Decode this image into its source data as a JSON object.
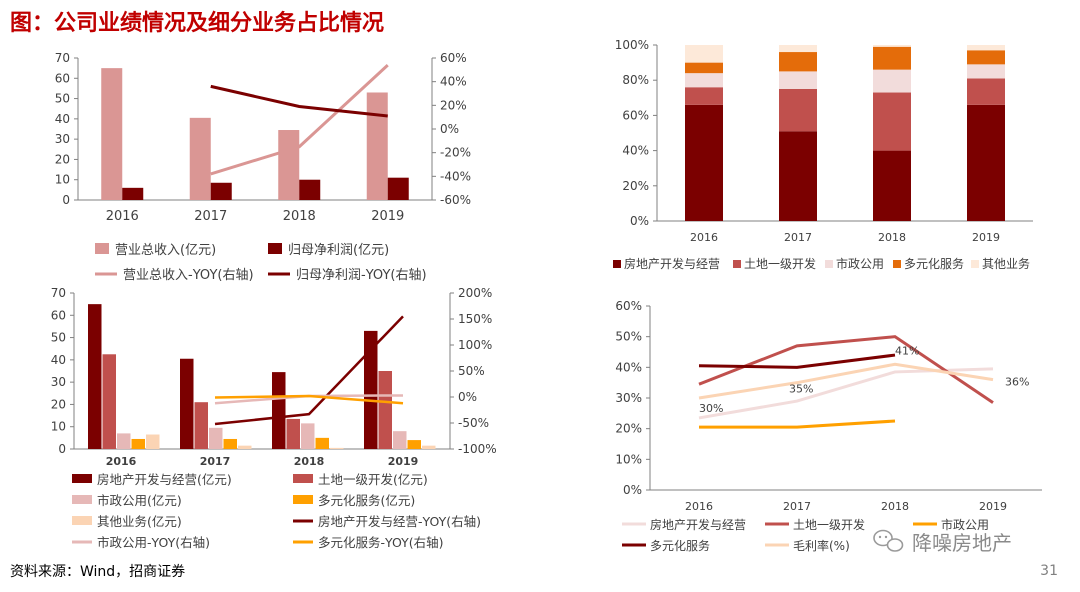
{
  "page": {
    "title": "图：公司业绩情况及细分业务占比情况",
    "source": "资料来源：Wind，招商证券",
    "page_number": "31",
    "watermark": "降噪房地产"
  },
  "colors": {
    "title": "#c00000",
    "dark_red": "#7b0000",
    "red": "#c0504d",
    "pink": "#da9694",
    "light_pink": "#e6b8b7",
    "very_light_pink": "#f2dcdb",
    "orange": "#e46c0a",
    "yellow_orange": "#ffa000",
    "peach": "#fbd4b4",
    "cream": "#fde9d9",
    "axis": "#808080"
  },
  "chart_data": [
    {
      "id": "c1",
      "type": "bar",
      "categories": [
        "2016",
        "2017",
        "2018",
        "2019"
      ],
      "ylim": [
        0,
        70
      ],
      "yticks": [
        "0",
        "10",
        "20",
        "30",
        "40",
        "50",
        "60",
        "70"
      ],
      "y2lim": [
        -60,
        60
      ],
      "y2ticks": [
        "-60%",
        "-40%",
        "-20%",
        "0%",
        "20%",
        "40%",
        "60%"
      ],
      "series": [
        {
          "name": "营业总收入(亿元)",
          "kind": "bar",
          "color": "#da9694",
          "values": [
            65,
            40.5,
            34.5,
            53
          ]
        },
        {
          "name": "归母净利润(亿元)",
          "kind": "bar",
          "color": "#7b0000",
          "values": [
            6,
            8.5,
            10,
            11
          ]
        },
        {
          "name": "营业总收入-YOY(右轴)",
          "kind": "line",
          "axis": "right",
          "color": "#da9694",
          "values": [
            null,
            -38,
            -15,
            54
          ]
        },
        {
          "name": "归母净利润-YOY(右轴)",
          "kind": "line",
          "axis": "right",
          "color": "#7b0000",
          "values": [
            null,
            36,
            19,
            11
          ]
        }
      ]
    },
    {
      "id": "c2",
      "type": "bar",
      "stacked": true,
      "categories": [
        "2016",
        "2017",
        "2018",
        "2019"
      ],
      "ylim": [
        0,
        100
      ],
      "yticks": [
        "0%",
        "20%",
        "40%",
        "60%",
        "80%",
        "100%"
      ],
      "series": [
        {
          "name": "房地产开发与经营",
          "color": "#7b0000",
          "values": [
            66,
            51,
            40,
            66
          ]
        },
        {
          "name": "土地一级开发",
          "color": "#c0504d",
          "values": [
            10,
            24,
            33,
            15
          ]
        },
        {
          "name": "市政公用",
          "color": "#f2dcdb",
          "values": [
            8,
            10,
            13,
            8
          ]
        },
        {
          "name": "多元化服务",
          "color": "#e46c0a",
          "values": [
            6,
            11,
            13,
            8
          ]
        },
        {
          "name": "其他业务",
          "color": "#fde9d9",
          "values": [
            10,
            4,
            1,
            3
          ]
        }
      ]
    },
    {
      "id": "c3",
      "type": "bar",
      "categories": [
        "2016",
        "2017",
        "2018",
        "2019"
      ],
      "ylim": [
        0,
        70
      ],
      "yticks": [
        "0",
        "10",
        "20",
        "30",
        "40",
        "50",
        "60",
        "70"
      ],
      "y2lim": [
        -100,
        200
      ],
      "y2ticks": [
        "-100%",
        "-50%",
        "0%",
        "50%",
        "100%",
        "150%",
        "200%"
      ],
      "series": [
        {
          "name": "房地产开发与经营(亿元)",
          "kind": "bar",
          "color": "#7b0000",
          "values": [
            65,
            40.5,
            34.5,
            53
          ]
        },
        {
          "name": "土地一级开发(亿元)",
          "kind": "bar",
          "color": "#c0504d",
          "values": [
            42.5,
            21,
            13.5,
            35
          ]
        },
        {
          "name": "市政公用(亿元)",
          "kind": "bar",
          "color": "#e6b8b7",
          "values": [
            7,
            9.5,
            11.5,
            8
          ]
        },
        {
          "name": "多元化服务(亿元)",
          "kind": "bar",
          "color": "#ffa000",
          "values": [
            4.5,
            4.5,
            5,
            4
          ]
        },
        {
          "name": "其他业务(亿元)",
          "kind": "bar",
          "color": "#fbd4b4",
          "values": [
            6.5,
            1.5,
            0.5,
            1.5
          ]
        },
        {
          "name": "房地产开发与经营-YOY(右轴)",
          "kind": "line",
          "axis": "right",
          "color": "#7b0000",
          "values": [
            null,
            -52,
            -33,
            155
          ]
        },
        {
          "name": "市政公用-YOY(右轴)",
          "kind": "line",
          "axis": "right",
          "color": "#e6b8b7",
          "values": [
            null,
            -12,
            2,
            3
          ]
        },
        {
          "name": "多元化服务-YOY(右轴)",
          "kind": "line",
          "axis": "right",
          "color": "#ffa000",
          "values": [
            null,
            -1,
            2,
            -12
          ]
        }
      ]
    },
    {
      "id": "c4",
      "type": "line",
      "categories": [
        "2016",
        "2017",
        "2018",
        "2019"
      ],
      "ylim": [
        0,
        60
      ],
      "yticks": [
        "0%",
        "10%",
        "20%",
        "30%",
        "40%",
        "50%",
        "60%"
      ],
      "series": [
        {
          "name": "房地产开发与经营",
          "color": "#f2dcdb",
          "values": [
            23.5,
            29,
            38.5,
            39.5
          ]
        },
        {
          "name": "土地一级开发",
          "color": "#c0504d",
          "values": [
            34.5,
            47,
            50,
            28.5
          ]
        },
        {
          "name": "市政公用",
          "color": "#ffa000",
          "values": [
            20.5,
            20.5,
            22.5,
            null
          ]
        },
        {
          "name": "多元化服务",
          "color": "#7b0000",
          "values": [
            40.5,
            40,
            44,
            null
          ]
        },
        {
          "name": "毛利率(%)",
          "color": "#fbd4b4",
          "values": [
            30,
            35,
            41,
            36
          ]
        }
      ],
      "data_labels": [
        "30%",
        "35%",
        "41%",
        "36%"
      ]
    }
  ]
}
